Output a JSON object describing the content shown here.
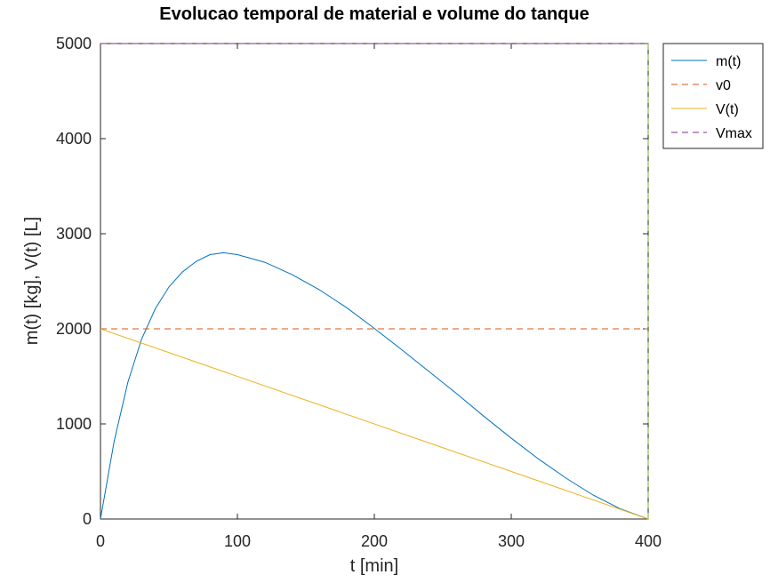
{
  "chart_data": {
    "type": "line",
    "title": "Evolucao temporal de material e volume do tanque",
    "xlabel": "t [min]",
    "ylabel": "m(t) [kg], V(t) [L]",
    "xlim": [
      0,
      400
    ],
    "ylim": [
      0,
      5000
    ],
    "xticks": [
      0,
      100,
      200,
      300,
      400
    ],
    "yticks": [
      0,
      1000,
      2000,
      3000,
      4000,
      5000
    ],
    "grid": false,
    "legend_position": "outside-top-right",
    "series": [
      {
        "name": "m(t)",
        "style": "solid",
        "color": "#0072bd",
        "x": [
          0,
          10,
          20,
          30,
          40,
          50,
          60,
          70,
          80,
          90,
          100,
          120,
          140,
          160,
          180,
          200,
          220,
          240,
          260,
          280,
          300,
          320,
          340,
          360,
          380,
          400
        ],
        "y": [
          0,
          818,
          1438,
          1890,
          2210,
          2440,
          2600,
          2710,
          2780,
          2800,
          2780,
          2700,
          2570,
          2410,
          2220,
          2005,
          1780,
          1550,
          1320,
          1080,
          850,
          630,
          430,
          250,
          105,
          0
        ]
      },
      {
        "name": "v0",
        "style": "dashed",
        "color": "#d95319",
        "x": [
          0,
          400
        ],
        "y": [
          2000,
          2000
        ]
      },
      {
        "name": "V(t)",
        "style": "solid",
        "color": "#edb120",
        "x": [
          0,
          400
        ],
        "y": [
          2000,
          0
        ]
      },
      {
        "name": "Vmax",
        "style": "dashed",
        "color": "#7e2f8e",
        "x": [
          0,
          400
        ],
        "y": [
          5000,
          5000
        ]
      },
      {
        "name": "",
        "style": "dashed",
        "color": "#77ac30",
        "x": [
          400,
          400
        ],
        "y": [
          0,
          5000
        ]
      }
    ]
  }
}
